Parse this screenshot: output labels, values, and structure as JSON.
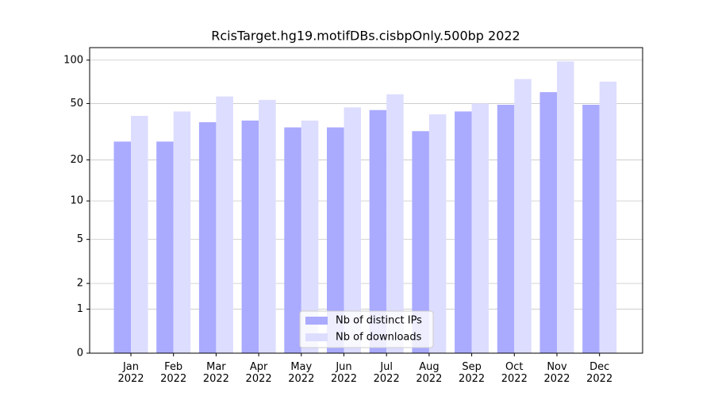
{
  "chart_data": {
    "type": "bar",
    "title": "RcisTarget.hg19.motifDBs.cisbpOnly.500bp 2022",
    "categories": [
      "Jan 2022",
      "Feb 2022",
      "Mar 2022",
      "Apr 2022",
      "May 2022",
      "Jun 2022",
      "Jul 2022",
      "Aug 2022",
      "Sep 2022",
      "Oct 2022",
      "Nov 2022",
      "Dec 2022"
    ],
    "series": [
      {
        "name": "Nb of distinct IPs",
        "color": "#aaaaff",
        "values": [
          27,
          27,
          37,
          38,
          34,
          34,
          45,
          32,
          44,
          49,
          60,
          49
        ]
      },
      {
        "name": "Nb of downloads",
        "color": "#ddddff",
        "values": [
          41,
          44,
          56,
          53,
          38,
          47,
          58,
          42,
          50,
          74,
          98,
          71
        ]
      }
    ],
    "yscale": "log1p",
    "ylim": [
      0,
      122
    ],
    "yticks": [
      0,
      1,
      2,
      5,
      10,
      20,
      50,
      100
    ],
    "grid": true,
    "legend": "lower center"
  }
}
